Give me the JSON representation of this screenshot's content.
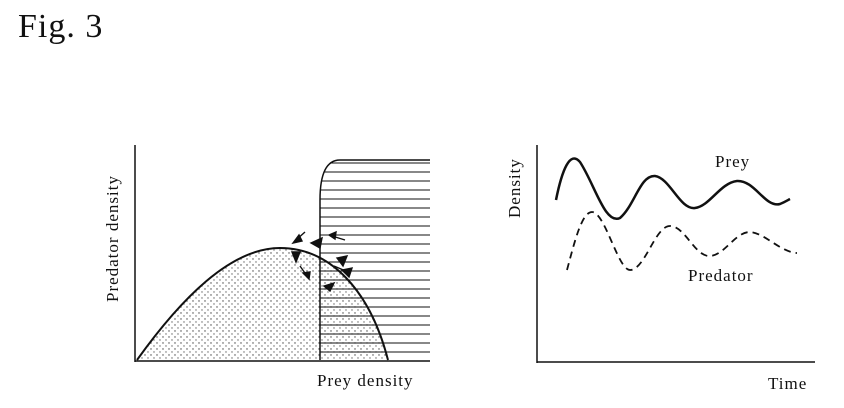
{
  "figure": {
    "title": "Fig. 3"
  },
  "left_panel": {
    "xlabel": "Prey density",
    "ylabel": "Predator density"
  },
  "right_panel": {
    "xlabel": "Time",
    "ylabel": "Density",
    "series": [
      {
        "name": "Prey",
        "style": "solid"
      },
      {
        "name": "Predator",
        "style": "dashed"
      }
    ]
  }
}
